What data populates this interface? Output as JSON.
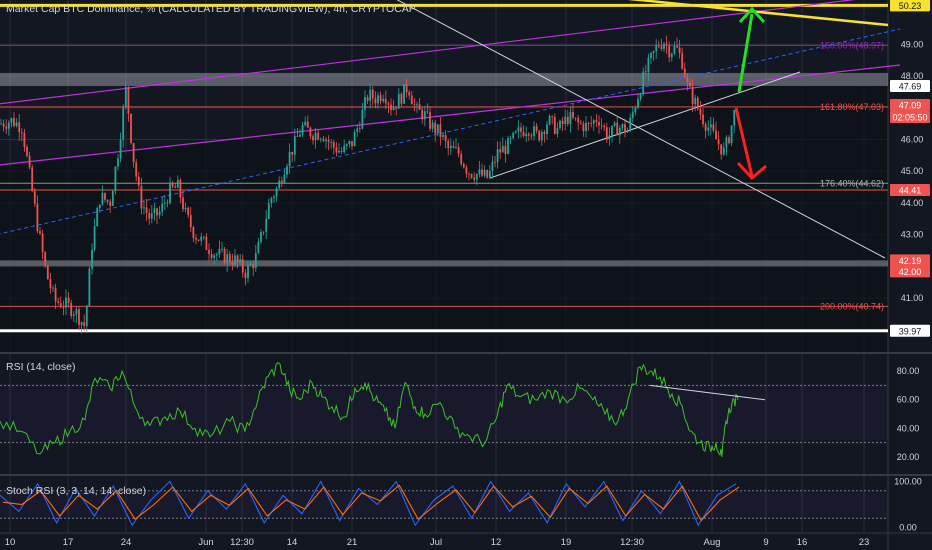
{
  "title": "Market Cap BTC Dominance, % (CALCULATED BY TRADINGVIEW), 4h, CRYPTOCAP",
  "colors": {
    "background": "#131722",
    "grid": "#2a2e39",
    "text": "#d1d4dc",
    "candle_up": "#26a69a",
    "candle_down": "#ef5350",
    "channel": "#c133e0",
    "yellow_line": "#f7e22d",
    "rsi_line": "#3fbf2b",
    "stoch_k": "#2962ff",
    "stoch_d": "#ff6d00",
    "arrow_up": "#22e022",
    "arrow_down": "#ff1f1f"
  },
  "chart_data": [
    {
      "type": "candlestick",
      "title": "Market Cap BTC Dominance, % (CALCULATED BY TRADINGVIEW), 4h, CRYPTOCAP",
      "x_ticks": [
        "10",
        "17",
        "24",
        "Jun",
        "12:30",
        "14",
        "21",
        "Jul",
        "12",
        "19",
        "12:30",
        "Aug",
        "9",
        "16",
        "23"
      ],
      "y_ticks": [
        "41.00",
        "42.00",
        "43.00",
        "44.00",
        "45.00",
        "46.00",
        "47.00",
        "48.00",
        "49.00"
      ],
      "ylim": [
        39.3,
        50.4
      ],
      "price_labels": [
        {
          "text": "50.23",
          "value": 50.23
        },
        {
          "text": "47.69",
          "value": 47.69
        },
        {
          "text": "47.09",
          "value": 47.09
        },
        {
          "text": "02:05:50",
          "value": 46.7
        },
        {
          "text": "44.41",
          "value": 44.41
        },
        {
          "text": "42.19",
          "value": 42.19
        },
        {
          "text": "42.00",
          "value": 42.0
        },
        {
          "text": "39.97",
          "value": 39.97
        }
      ],
      "fib_levels": [
        {
          "text": "150.00%(48.97)",
          "value": 48.97
        },
        {
          "text": "161.80%(47.03)",
          "value": 47.03
        },
        {
          "text": "176.40%(44.62)",
          "value": 44.62
        },
        {
          "text": "200.00%(40.74)",
          "value": 40.74
        }
      ],
      "zones": [
        {
          "from": 47.69,
          "to": 48.1
        },
        {
          "from": 42.0,
          "to": 42.19
        }
      ],
      "horizontal_lines": [
        {
          "value": 50.23,
          "color": "#f7e22d"
        },
        {
          "value": 44.41,
          "color": "#ef5350"
        },
        {
          "value": 39.97,
          "color": "#ffffff"
        }
      ],
      "price_path": [
        [
          0,
          46.5
        ],
        [
          12,
          46.6
        ],
        [
          22,
          46.4
        ],
        [
          30,
          44.8
        ],
        [
          38,
          43.2
        ],
        [
          46,
          41.8
        ],
        [
          55,
          40.9
        ],
        [
          65,
          40.8
        ],
        [
          75,
          40.6
        ],
        [
          85,
          40.1
        ],
        [
          92,
          42.7
        ],
        [
          100,
          44.2
        ],
        [
          110,
          44.0
        ],
        [
          118,
          45.6
        ],
        [
          126,
          47.6
        ],
        [
          133,
          45.5
        ],
        [
          140,
          44.1
        ],
        [
          150,
          43.5
        ],
        [
          160,
          43.7
        ],
        [
          170,
          44.4
        ],
        [
          178,
          44.5
        ],
        [
          186,
          43.6
        ],
        [
          195,
          43.0
        ],
        [
          205,
          42.7
        ],
        [
          215,
          42.4
        ],
        [
          225,
          42.3
        ],
        [
          235,
          42.2
        ],
        [
          245,
          41.8
        ],
        [
          255,
          42.2
        ],
        [
          262,
          43.0
        ],
        [
          270,
          44.1
        ],
        [
          278,
          44.5
        ],
        [
          286,
          45.3
        ],
        [
          294,
          45.8
        ],
        [
          302,
          46.4
        ],
        [
          312,
          46.2
        ],
        [
          322,
          46.2
        ],
        [
          332,
          45.8
        ],
        [
          342,
          45.6
        ],
        [
          352,
          45.9
        ],
        [
          360,
          46.6
        ],
        [
          368,
          47.4
        ],
        [
          376,
          47.3
        ],
        [
          384,
          47.5
        ],
        [
          392,
          47.0
        ],
        [
          400,
          47.3
        ],
        [
          408,
          47.7
        ],
        [
          416,
          46.9
        ],
        [
          424,
          46.8
        ],
        [
          432,
          46.4
        ],
        [
          440,
          46.2
        ],
        [
          448,
          45.7
        ],
        [
          458,
          45.6
        ],
        [
          468,
          45.0
        ],
        [
          478,
          44.9
        ],
        [
          488,
          44.8
        ],
        [
          498,
          45.6
        ],
        [
          508,
          45.8
        ],
        [
          518,
          46.2
        ],
        [
          528,
          46.4
        ],
        [
          538,
          46.1
        ],
        [
          548,
          46.6
        ],
        [
          558,
          46.3
        ],
        [
          568,
          46.7
        ],
        [
          578,
          46.5
        ],
        [
          588,
          46.4
        ],
        [
          598,
          46.7
        ],
        [
          608,
          46.1
        ],
        [
          618,
          46.4
        ],
        [
          628,
          46.3
        ],
        [
          636,
          47.2
        ],
        [
          644,
          48.0
        ],
        [
          652,
          48.6
        ],
        [
          658,
          49.0
        ],
        [
          664,
          49.1
        ],
        [
          670,
          48.8
        ],
        [
          676,
          48.9
        ],
        [
          682,
          48.5
        ],
        [
          688,
          47.6
        ],
        [
          696,
          47.1
        ],
        [
          704,
          46.6
        ],
        [
          712,
          46.2
        ],
        [
          718,
          45.9
        ],
        [
          724,
          45.6
        ],
        [
          730,
          46.2
        ],
        [
          736,
          47.1
        ]
      ]
    },
    {
      "type": "line",
      "title": "RSI (14, close)",
      "y_ticks": [
        "20.00",
        "40.00",
        "60.00",
        "80.00"
      ],
      "ylim": [
        8,
        92
      ],
      "levels": [
        70,
        30
      ],
      "points": [
        [
          0,
          45
        ],
        [
          20,
          38
        ],
        [
          40,
          22
        ],
        [
          55,
          30
        ],
        [
          70,
          38
        ],
        [
          85,
          46
        ],
        [
          95,
          75
        ],
        [
          110,
          68
        ],
        [
          122,
          80
        ],
        [
          135,
          55
        ],
        [
          150,
          42
        ],
        [
          165,
          48
        ],
        [
          180,
          52
        ],
        [
          195,
          40
        ],
        [
          210,
          34
        ],
        [
          230,
          45
        ],
        [
          245,
          38
        ],
        [
          258,
          60
        ],
        [
          268,
          76
        ],
        [
          280,
          85
        ],
        [
          290,
          66
        ],
        [
          300,
          60
        ],
        [
          312,
          72
        ],
        [
          322,
          62
        ],
        [
          332,
          55
        ],
        [
          345,
          48
        ],
        [
          355,
          68
        ],
        [
          365,
          72
        ],
        [
          375,
          60
        ],
        [
          385,
          52
        ],
        [
          395,
          40
        ],
        [
          405,
          72
        ],
        [
          415,
          55
        ],
        [
          425,
          50
        ],
        [
          440,
          58
        ],
        [
          455,
          40
        ],
        [
          470,
          34
        ],
        [
          485,
          30
        ],
        [
          497,
          48
        ],
        [
          507,
          70
        ],
        [
          520,
          62
        ],
        [
          535,
          60
        ],
        [
          550,
          66
        ],
        [
          565,
          60
        ],
        [
          580,
          68
        ],
        [
          593,
          60
        ],
        [
          605,
          50
        ],
        [
          618,
          45
        ],
        [
          628,
          60
        ],
        [
          640,
          83
        ],
        [
          650,
          80
        ],
        [
          660,
          76
        ],
        [
          672,
          64
        ],
        [
          682,
          56
        ],
        [
          690,
          38
        ],
        [
          700,
          30
        ],
        [
          710,
          26
        ],
        [
          716,
          30
        ],
        [
          722,
          20
        ],
        [
          726,
          45
        ],
        [
          732,
          58
        ],
        [
          738,
          60
        ]
      ],
      "trendline": [
        [
          650,
          70
        ],
        [
          765,
          60
        ]
      ]
    },
    {
      "type": "line",
      "title": "Stoch RSI (3, 3, 14, 14, close)",
      "y_ticks": [
        "0.00",
        "100.00"
      ],
      "ylim": [
        -12,
        112
      ],
      "levels": [
        80,
        20
      ],
      "series": [
        {
          "values": [
            70,
            35,
            95,
            10,
            85,
            25,
            90,
            5,
            60,
            100,
            20,
            80,
            40,
            95,
            10,
            70,
            30,
            100,
            15,
            85,
            50,
            100,
            5,
            60,
            90,
            20,
            100,
            35,
            75,
            10,
            95,
            45,
            100,
            15,
            80,
            30,
            100,
            5,
            70,
            95
          ]
        },
        {
          "values": [
            55,
            50,
            80,
            25,
            70,
            40,
            80,
            18,
            50,
            88,
            35,
            70,
            48,
            85,
            25,
            60,
            40,
            88,
            28,
            75,
            58,
            92,
            18,
            52,
            82,
            32,
            90,
            45,
            68,
            22,
            85,
            52,
            90,
            25,
            72,
            40,
            90,
            15,
            60,
            88
          ]
        }
      ]
    }
  ]
}
